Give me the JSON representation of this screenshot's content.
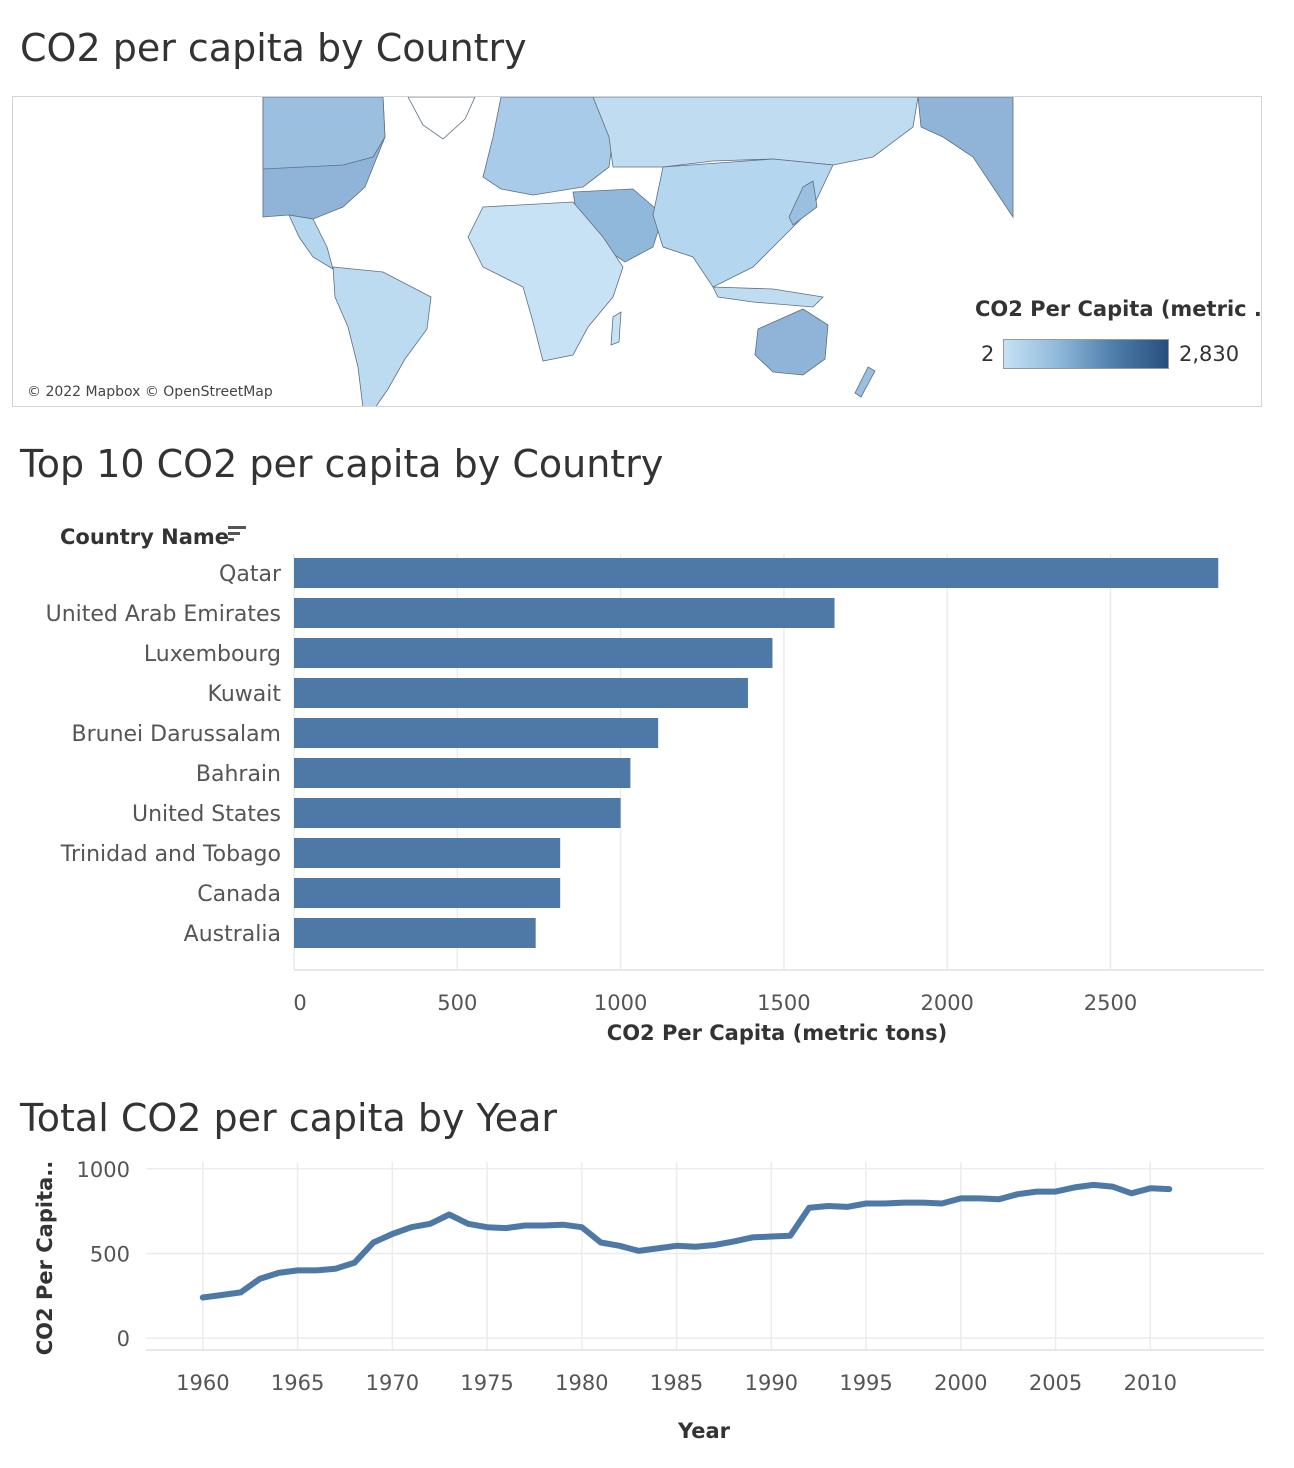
{
  "map_section": {
    "title": "CO2 per capita by Country",
    "attribution": "© 2022 Mapbox © OpenStreetMap",
    "legend": {
      "title": "CO2 Per Capita (metric ..",
      "min_label": "2",
      "max_label": "2,830",
      "color_low": "#c6e2f4",
      "color_high": "#284e7d"
    }
  },
  "bar_section": {
    "title": "Top 10 CO2 per capita by Country",
    "dimension_header": "Country Name"
  },
  "line_section": {
    "title": "Total CO2 per capita by Year"
  },
  "colors": {
    "bar": "#4e79a7",
    "line": "#4e79a7",
    "grid": "#ececec"
  },
  "chart_data": [
    {
      "type": "bar",
      "orientation": "horizontal",
      "categories": [
        "Qatar",
        "United Arab Emirates",
        "Luxembourg",
        "Kuwait",
        "Brunei Darussalam",
        "Bahrain",
        "United States",
        "Trinidad and Tobago",
        "Canada",
        "Australia"
      ],
      "values": [
        2830,
        1655,
        1465,
        1390,
        1115,
        1030,
        1000,
        815,
        815,
        740
      ],
      "xlabel": "CO2 Per Capita (metric tons)",
      "xlim": [
        0,
        2970
      ],
      "xticks": [
        0,
        500,
        1000,
        1500,
        2000,
        2500
      ],
      "grid": true
    },
    {
      "type": "line",
      "x": [
        1960,
        1961,
        1962,
        1963,
        1964,
        1965,
        1966,
        1967,
        1968,
        1969,
        1970,
        1971,
        1972,
        1973,
        1974,
        1975,
        1976,
        1977,
        1978,
        1979,
        1980,
        1981,
        1982,
        1983,
        1984,
        1985,
        1986,
        1987,
        1988,
        1989,
        1990,
        1991,
        1992,
        1993,
        1994,
        1995,
        1996,
        1997,
        1998,
        1999,
        2000,
        2001,
        2002,
        2003,
        2004,
        2005,
        2006,
        2007,
        2008,
        2009,
        2010,
        2011
      ],
      "y": [
        240,
        255,
        270,
        350,
        385,
        400,
        400,
        410,
        445,
        565,
        615,
        655,
        675,
        730,
        675,
        655,
        650,
        665,
        665,
        670,
        655,
        565,
        545,
        515,
        530,
        545,
        540,
        550,
        570,
        595,
        600,
        605,
        770,
        780,
        775,
        795,
        795,
        800,
        800,
        795,
        825,
        825,
        820,
        850,
        865,
        865,
        890,
        905,
        895,
        855,
        885,
        880
      ],
      "xlabel": "Year",
      "ylabel": "CO2 Per Capita..",
      "xticks": [
        1960,
        1965,
        1970,
        1975,
        1980,
        1985,
        1990,
        1995,
        2000,
        2005,
        2010
      ],
      "yticks": [
        0,
        500,
        1000
      ],
      "xlim": [
        1957,
        2016
      ],
      "ylim": [
        -70,
        1040
      ],
      "grid": true
    }
  ]
}
